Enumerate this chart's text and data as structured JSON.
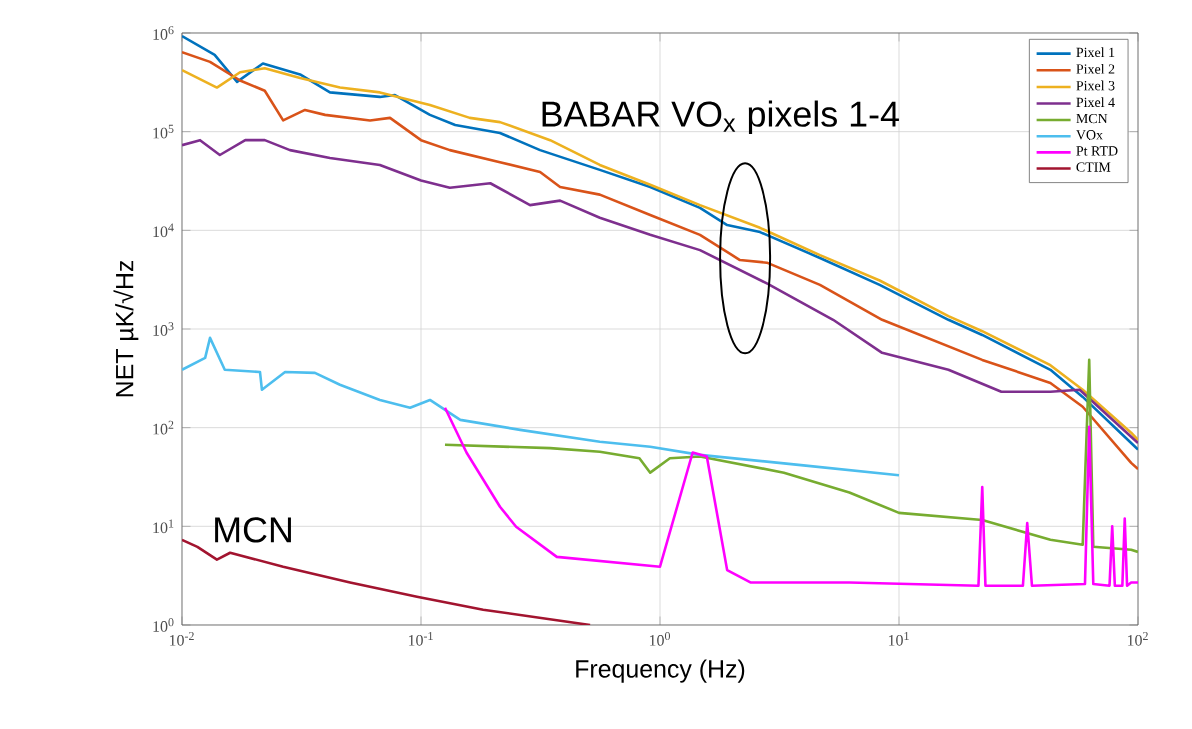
{
  "chart_data": {
    "type": "line",
    "xlabel": "Frequency (Hz)",
    "ylabel": "NET µK/√Hz",
    "log": "xy",
    "grid": true,
    "legend": "top right",
    "xlim": [
      0.01,
      100
    ],
    "ylim": [
      1,
      1000000
    ],
    "xticks": [
      {
        "value": 0.01,
        "label": "10$^{-2}$"
      },
      {
        "value": 0.1,
        "label": "10$^{-1}$"
      },
      {
        "value": 1,
        "label": "10$^{0}$"
      },
      {
        "value": 10,
        "label": "10$^{1}$"
      },
      {
        "value": 100,
        "label": "10$^{2}$"
      }
    ],
    "yticks": [
      {
        "value": 1,
        "label": "10$^{0}$"
      },
      {
        "value": 10,
        "label": "10$^{1}$"
      },
      {
        "value": 100,
        "label": "10$^{2}$"
      },
      {
        "value": 1000,
        "label": "10$^{3}$"
      },
      {
        "value": 10000,
        "label": "10$^{4}$"
      },
      {
        "value": 100000,
        "label": "10$^{5}$"
      },
      {
        "value": 1000000,
        "label": "10$^{6}$"
      }
    ],
    "annotations": [
      "BABAR VO$_{x}$ pixels 1-4",
      "MCN"
    ],
    "series": [
      {
        "name": "Pixel 1",
        "color": "#0072bd",
        "x": [
          0.01,
          0.0137,
          0.017,
          0.0218,
          0.0312,
          0.0416,
          0.0673,
          0.0778,
          0.109,
          0.139,
          0.214,
          0.315,
          0.56,
          0.91,
          1.47,
          1.91,
          2.62,
          4.67,
          8.3,
          16.1,
          22.3,
          43,
          58.7,
          93.6,
          100
        ],
        "values": [
          930000,
          600000,
          320000,
          490000,
          380000,
          250000,
          225000,
          235000,
          148000,
          117000,
          97000,
          65000,
          41000,
          27500,
          16900,
          11300,
          9600,
          5250,
          2800,
          1240,
          870,
          386,
          205,
          70,
          60
        ]
      },
      {
        "name": "Pixel 2",
        "color": "#d95319",
        "x": [
          0.01,
          0.0131,
          0.0175,
          0.0222,
          0.0265,
          0.0327,
          0.0397,
          0.0612,
          0.0742,
          0.1,
          0.132,
          0.214,
          0.315,
          0.382,
          0.56,
          0.91,
          1.47,
          2.16,
          2.8,
          4.67,
          8.5,
          22.3,
          43,
          58.7,
          93.6,
          100
        ],
        "values": [
          640000,
          510000,
          330000,
          260000,
          130000,
          166000,
          148000,
          130000,
          138000,
          82000,
          65000,
          49000,
          39000,
          27500,
          23000,
          14300,
          9000,
          5000,
          4700,
          2800,
          1240,
          486,
          284,
          163,
          44,
          38
        ]
      },
      {
        "name": "Pixel 3",
        "color": "#edb120",
        "x": [
          0.01,
          0.014,
          0.0175,
          0.0222,
          0.0312,
          0.0458,
          0.0673,
          0.109,
          0.16,
          0.214,
          0.347,
          0.56,
          0.91,
          1.47,
          2.62,
          4.67,
          8.3,
          16.1,
          22.3,
          43,
          58.7,
          93.6,
          100
        ],
        "values": [
          420000,
          280000,
          400000,
          440000,
          350000,
          280000,
          250000,
          186000,
          138000,
          125000,
          82000,
          46000,
          29000,
          18000,
          10600,
          5600,
          3100,
          1350,
          950,
          430,
          242,
          89,
          75
        ]
      },
      {
        "name": "Pixel 4",
        "color": "#7e2f8e",
        "x": [
          0.01,
          0.0119,
          0.0144,
          0.0184,
          0.0222,
          0.0283,
          0.0416,
          0.0673,
          0.1,
          0.132,
          0.195,
          0.286,
          0.382,
          0.56,
          0.91,
          1.47,
          2.8,
          5.3,
          8.5,
          16.1,
          26.8,
          43,
          57,
          93.6,
          100
        ],
        "values": [
          73000,
          82000,
          58000,
          82000,
          82000,
          65000,
          54000,
          46000,
          32000,
          27000,
          30000,
          18000,
          20000,
          13400,
          9000,
          6300,
          2900,
          1240,
          573,
          386,
          231,
          231,
          242,
          81,
          70
        ]
      },
      {
        "name": "MCN",
        "color": "#77ac30",
        "x": [
          0.126,
          0.347,
          0.56,
          0.82,
          0.91,
          1.1,
          1.47,
          3.3,
          6.2,
          10,
          22.3,
          43,
          58.7,
          62.5,
          65,
          93.6,
          100
        ],
        "values": [
          67,
          62,
          57,
          49,
          35,
          49,
          51,
          35,
          22,
          13.7,
          11.6,
          7.3,
          6.5,
          486,
          6.2,
          5.8,
          5.5
        ]
      },
      {
        "name": "VOx",
        "color": "#4dbeee",
        "x": [
          0.01,
          0.0125,
          0.0131,
          0.0151,
          0.0212,
          0.0216,
          0.027,
          0.036,
          0.0458,
          0.0673,
          0.09,
          0.109,
          0.146,
          0.26,
          0.56,
          0.91,
          1.47,
          3.8,
          10
        ],
        "values": [
          386,
          510,
          813,
          386,
          367,
          242,
          367,
          359,
          272,
          191,
          159,
          191,
          120,
          95,
          72,
          64,
          53,
          42,
          33
        ]
      },
      {
        "name": "Pt RTD",
        "color": "#ff00ff",
        "x": [
          0.126,
          0.155,
          0.214,
          0.25,
          0.37,
          1.0,
          1.37,
          1.57,
          1.91,
          2.39,
          6.2,
          21.5,
          22.3,
          23,
          33,
          34.4,
          36,
          60,
          62.5,
          65,
          76,
          78,
          80,
          86,
          88,
          90,
          93.6,
          100
        ],
        "values": [
          159,
          56,
          15.8,
          9.9,
          4.9,
          3.9,
          56,
          51,
          3.6,
          2.7,
          2.7,
          2.5,
          25,
          2.5,
          2.5,
          10.8,
          2.5,
          2.6,
          102,
          2.6,
          2.5,
          10,
          2.5,
          2.5,
          12,
          2.5,
          2.7,
          2.7
        ]
      },
      {
        "name": "CTIM",
        "color": "#a2142f",
        "x": [
          0.01,
          0.0116,
          0.014,
          0.0159,
          0.0265,
          0.0505,
          0.0962,
          0.182,
          0.51
        ],
        "values": [
          7.3,
          6.2,
          4.6,
          5.4,
          3.9,
          2.7,
          1.93,
          1.43,
          1.0
        ]
      }
    ]
  }
}
